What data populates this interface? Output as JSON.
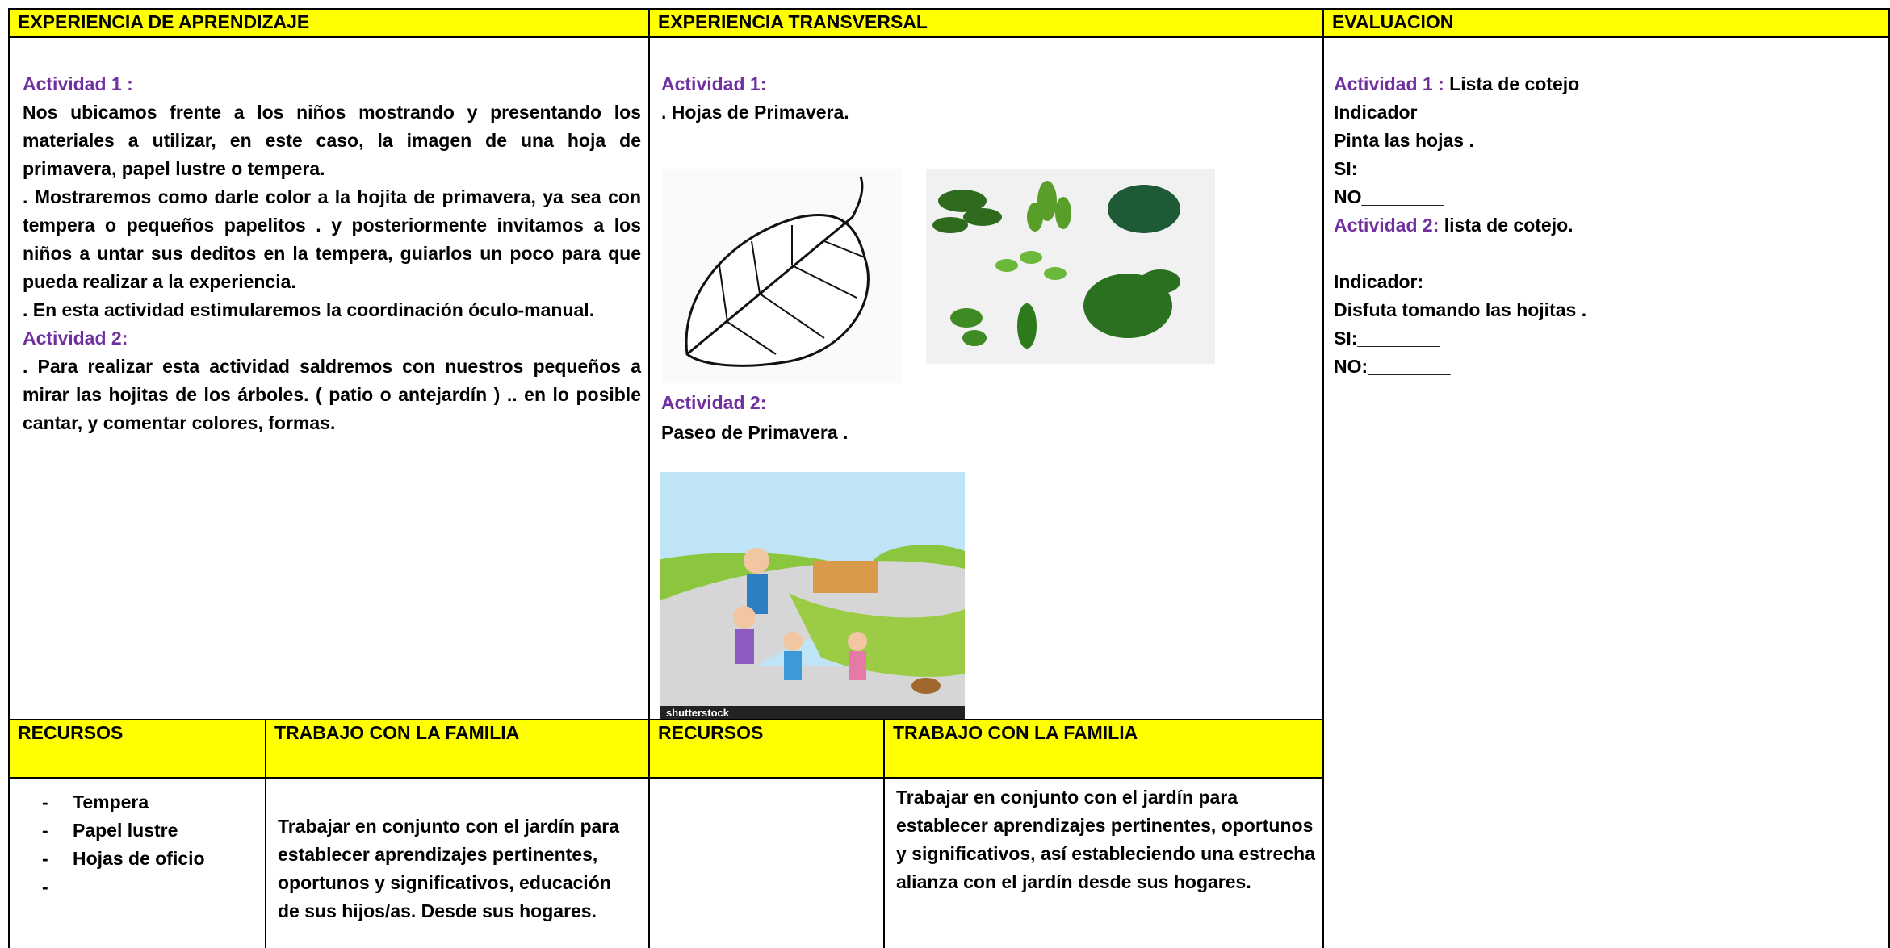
{
  "headers": [
    "EXPERIENCIA DE APRENDIZAJE",
    "EXPERIENCIA TRANSVERSAL",
    "EVALUACION"
  ],
  "aprendizaje": {
    "act1_label": "Actividad 1 :",
    "act1_paragraphs": [
      "Nos ubicamos frente a los niños mostrando y presentando los materiales a utilizar, en este caso, la imagen de una hoja de primavera, papel lustre o tempera.",
      ". Mostraremos como darle color a la hojita de primavera, ya sea con tempera o pequeños papelitos . y posteriormente invitamos a los niños a untar sus deditos en la tempera, guiarlos un poco para que pueda realizar a la experiencia.",
      ". En esta actividad estimularemos la coordinación óculo-manual."
    ],
    "act2_label": "Actividad 2:",
    "act2_text": ". Para realizar esta actividad saldremos con nuestros pequeños a mirar las hojitas  de los árboles. ( patio o antejardín ) .. en lo posible cantar, y comentar  colores, formas."
  },
  "transversal": {
    "act1_label": "Actividad 1:",
    "act1_text": ". Hojas de Primavera.",
    "act2_label": "Actividad 2:",
    "act2_text": "Paseo de Primavera .",
    "image_credit": "shutterstock"
  },
  "evaluacion": {
    "act1_label": "Actividad 1 :",
    "act1_text": "Lista de cotejo",
    "indicador1": "Indicador",
    "indicador1_text": "Pinta las hojas .",
    "si1": "SI:______",
    "no1": "NO________",
    "act2_label": "Actividad 2:",
    "act2_text": "lista de cotejo.",
    "indicador2": "Indicador:",
    "indicador2_text": "Disfuta tomando las hojitas .",
    "si2": "SI:________",
    "no2": "NO:________"
  },
  "sub_headers": [
    "RECURSOS",
    "TRABAJO CON LA FAMILIA",
    "RECURSOS",
    "TRABAJO CON LA FAMILIA"
  ],
  "recursos_1": [
    "Tempera",
    "Papel lustre",
    "Hojas de oficio"
  ],
  "familia_1": "Trabajar en conjunto con el jardín para establecer aprendizajes pertinentes, oportunos y significativos, educación de sus hijos/as. Desde sus hogares.",
  "familia_2": "Trabajar en conjunto con el jardín para establecer aprendizajes pertinentes, oportunos y significativos, así estableciendo una estrecha alianza con el jardín desde sus hogares."
}
